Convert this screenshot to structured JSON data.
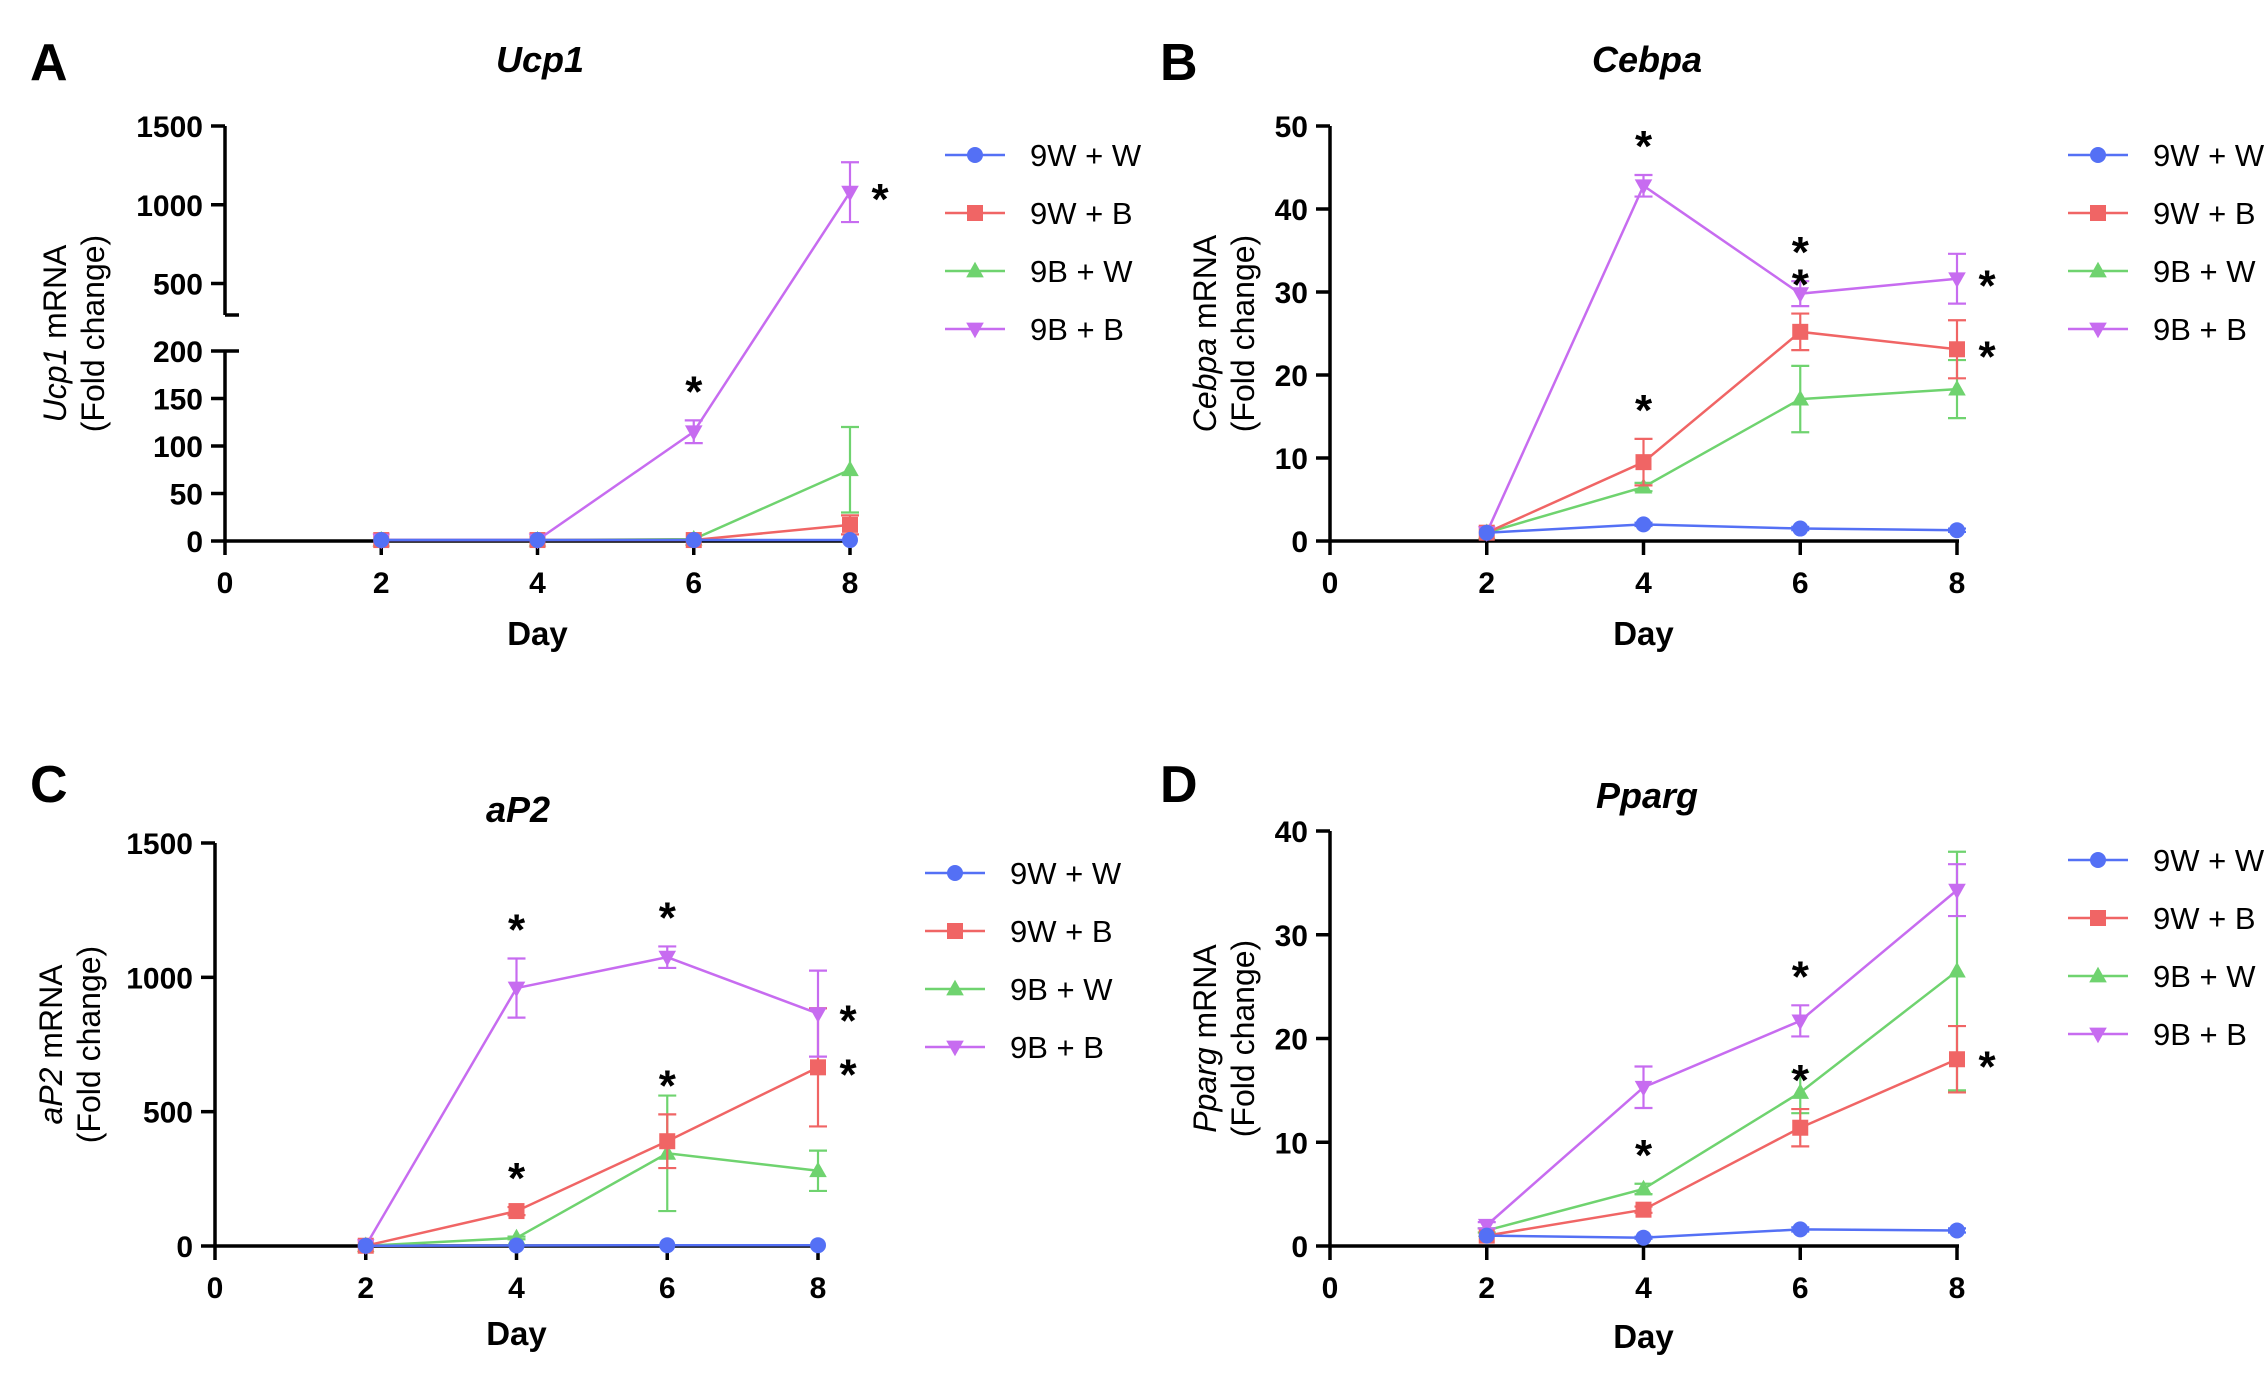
{
  "figure": {
    "legend_series": [
      "9W + W",
      "9W + B",
      "9B + W",
      "9B + B"
    ]
  },
  "colors": {
    "9W + W": "#5470f5",
    "9W + B": "#f06565",
    "9B + W": "#6fd36f",
    "9B + B": "#c76cf0"
  },
  "chart_data": [
    {
      "panel": "A",
      "type": "line",
      "title": "Ucp1",
      "ylabel_italic": "Ucp1",
      "ylabel_rest": " mRNA",
      "ylabel_line2": "(Fold change)",
      "xlabel": "Day",
      "x_ticks": [
        "0",
        "2",
        "4",
        "6",
        "8"
      ],
      "y_ticks_lower": [
        "0",
        "50",
        "100",
        "150",
        "200"
      ],
      "y_ticks_upper": [
        "500",
        "1000",
        "1500"
      ],
      "x": [
        2,
        4,
        6,
        8
      ],
      "xlim": [
        0,
        8
      ],
      "ylim_lower": [
        0,
        200
      ],
      "ylim_upper": [
        300,
        1500
      ],
      "broken_y_axis": true,
      "significance": "*",
      "series": [
        {
          "name": "9W + W",
          "values": [
            1,
            1,
            1,
            1
          ],
          "errors": [
            0,
            0,
            0,
            0
          ]
        },
        {
          "name": "9W + B",
          "values": [
            1,
            1,
            1,
            17
          ],
          "errors": [
            0,
            0,
            0,
            10
          ]
        },
        {
          "name": "9B + W",
          "values": [
            1,
            1,
            2,
            75
          ],
          "errors": [
            0,
            0,
            0,
            45
          ]
        },
        {
          "name": "9B + B",
          "values": [
            1,
            1,
            115,
            1080
          ],
          "errors": [
            0,
            0,
            12,
            190
          ],
          "starred": [
            false,
            false,
            true,
            true
          ]
        }
      ]
    },
    {
      "panel": "B",
      "type": "line",
      "title": "Cebpa",
      "ylabel_italic": "Cebpa",
      "ylabel_rest": " mRNA",
      "ylabel_line2": "(Fold change)",
      "xlabel": "Day",
      "x_ticks": [
        "0",
        "2",
        "4",
        "6",
        "8"
      ],
      "y_ticks": [
        "0",
        "10",
        "20",
        "30",
        "40",
        "50"
      ],
      "x": [
        2,
        4,
        6,
        8
      ],
      "xlim": [
        0,
        8
      ],
      "ylim": [
        0,
        50
      ],
      "significance": "*",
      "series": [
        {
          "name": "9W + W",
          "values": [
            1,
            2,
            1.5,
            1.3
          ],
          "errors": [
            0,
            0.2,
            0.2,
            0.2
          ]
        },
        {
          "name": "9W + B",
          "values": [
            1,
            9.5,
            25.2,
            23.1
          ],
          "errors": [
            0,
            2.8,
            2.2,
            3.5
          ],
          "starred": [
            false,
            true,
            true,
            true
          ]
        },
        {
          "name": "9B + W",
          "values": [
            1,
            6.5,
            17.1,
            18.3
          ],
          "errors": [
            0,
            0.5,
            4,
            3.5
          ]
        },
        {
          "name": "9B + B",
          "values": [
            1,
            42.8,
            29.8,
            31.6
          ],
          "errors": [
            0,
            1.3,
            1.5,
            3
          ],
          "starred": [
            false,
            true,
            true,
            true
          ]
        }
      ]
    },
    {
      "panel": "C",
      "type": "line",
      "title": "aP2",
      "ylabel_italic": "aP2",
      "ylabel_rest": " mRNA",
      "ylabel_line2": "(Fold change)",
      "xlabel": "Day",
      "x_ticks": [
        "0",
        "2",
        "4",
        "6",
        "8"
      ],
      "y_ticks": [
        "0",
        "500",
        "1000",
        "1500"
      ],
      "x": [
        2,
        4,
        6,
        8
      ],
      "xlim": [
        0,
        8
      ],
      "ylim": [
        0,
        1500
      ],
      "significance": "*",
      "series": [
        {
          "name": "9W + W",
          "values": [
            1,
            2,
            3,
            3
          ],
          "errors": [
            0,
            0,
            0,
            0
          ]
        },
        {
          "name": "9W + B",
          "values": [
            1,
            130,
            390,
            665
          ],
          "errors": [
            0,
            15,
            100,
            220
          ],
          "starred": [
            false,
            true,
            true,
            true
          ]
        },
        {
          "name": "9B + W",
          "values": [
            1,
            30,
            345,
            280
          ],
          "errors": [
            0,
            5,
            215,
            75
          ]
        },
        {
          "name": "9B + B",
          "values": [
            1,
            960,
            1075,
            865
          ],
          "errors": [
            0,
            110,
            40,
            160
          ],
          "starred": [
            false,
            true,
            true,
            true
          ]
        }
      ]
    },
    {
      "panel": "D",
      "type": "line",
      "title": "Pparg",
      "ylabel_italic": "Pparg",
      "ylabel_rest": " mRNA",
      "ylabel_line2": "(Fold change)",
      "xlabel": "Day",
      "x_ticks": [
        "0",
        "2",
        "4",
        "6",
        "8"
      ],
      "y_ticks": [
        "0",
        "10",
        "20",
        "30",
        "40"
      ],
      "x": [
        2,
        4,
        6,
        8
      ],
      "xlim": [
        0,
        8
      ],
      "ylim": [
        0,
        40
      ],
      "significance": "*",
      "series": [
        {
          "name": "9W + W",
          "values": [
            1,
            0.8,
            1.6,
            1.5
          ],
          "errors": [
            0,
            0.1,
            0.2,
            0.2
          ]
        },
        {
          "name": "9W + B",
          "values": [
            1,
            3.5,
            11.4,
            18
          ],
          "errors": [
            0,
            0.3,
            1.8,
            3.2
          ],
          "starred": [
            false,
            false,
            true,
            true
          ]
        },
        {
          "name": "9B + W",
          "values": [
            1.5,
            5.5,
            14.8,
            26.5
          ],
          "errors": [
            0.2,
            0.5,
            2,
            11.5
          ],
          "starred": [
            false,
            true,
            false,
            false
          ]
        },
        {
          "name": "9B + B",
          "values": [
            2,
            15.3,
            21.7,
            34.3
          ],
          "errors": [
            0.3,
            2,
            1.5,
            2.5
          ],
          "starred": [
            false,
            false,
            true,
            false
          ]
        }
      ]
    }
  ]
}
